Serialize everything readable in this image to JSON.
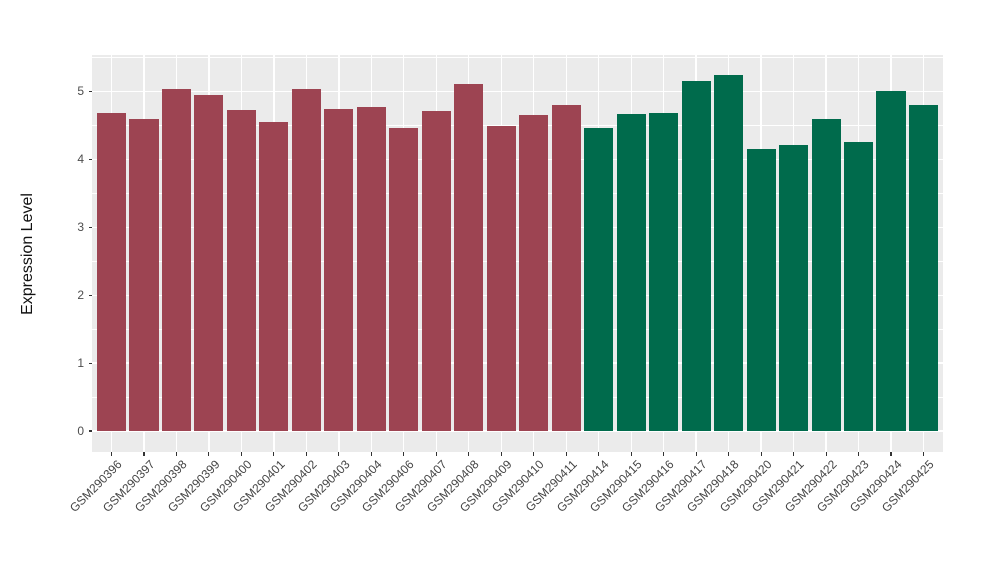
{
  "figure": {
    "background": "#FFFFFF",
    "panel_background": "#EBEBEB",
    "grid_color": "#FFFFFF",
    "tick_color": "#333333",
    "axis_text_color": "#4D4D4D",
    "group_colors": {
      "red_group": "#9D4452",
      "green_group": "#006B4C"
    }
  },
  "chart_data": {
    "type": "bar",
    "title": "",
    "xlabel": "",
    "ylabel": "Expression Level",
    "grid": true,
    "legend": false,
    "ylim": [
      -0.31,
      5.54
    ],
    "yticks": [
      0,
      1,
      2,
      3,
      4,
      5
    ],
    "yticks_minor": [
      0.5,
      1.5,
      2.5,
      3.5,
      4.5,
      5.5
    ],
    "categories": [
      "GSM290396",
      "GSM290397",
      "GSM290398",
      "GSM290399",
      "GSM290400",
      "GSM290401",
      "GSM290402",
      "GSM290403",
      "GSM290404",
      "GSM290406",
      "GSM290407",
      "GSM290408",
      "GSM290409",
      "GSM290410",
      "GSM290411",
      "GSM290414",
      "GSM290415",
      "GSM290416",
      "GSM290417",
      "GSM290418",
      "GSM290420",
      "GSM290421",
      "GSM290422",
      "GSM290423",
      "GSM290424",
      "GSM290425"
    ],
    "values": [
      4.68,
      4.6,
      5.04,
      4.95,
      4.73,
      4.55,
      5.04,
      4.75,
      4.78,
      4.46,
      4.71,
      5.11,
      4.49,
      4.65,
      4.8,
      4.47,
      4.67,
      4.69,
      5.16,
      5.24,
      4.15,
      4.21,
      4.6,
      4.26,
      5.01,
      4.81
    ],
    "colors": [
      "#9D4452",
      "#9D4452",
      "#9D4452",
      "#9D4452",
      "#9D4452",
      "#9D4452",
      "#9D4452",
      "#9D4452",
      "#9D4452",
      "#9D4452",
      "#9D4452",
      "#9D4452",
      "#9D4452",
      "#9D4452",
      "#9D4452",
      "#006B4C",
      "#006B4C",
      "#006B4C",
      "#006B4C",
      "#006B4C",
      "#006B4C",
      "#006B4C",
      "#006B4C",
      "#006B4C",
      "#006B4C",
      "#006B4C"
    ]
  }
}
